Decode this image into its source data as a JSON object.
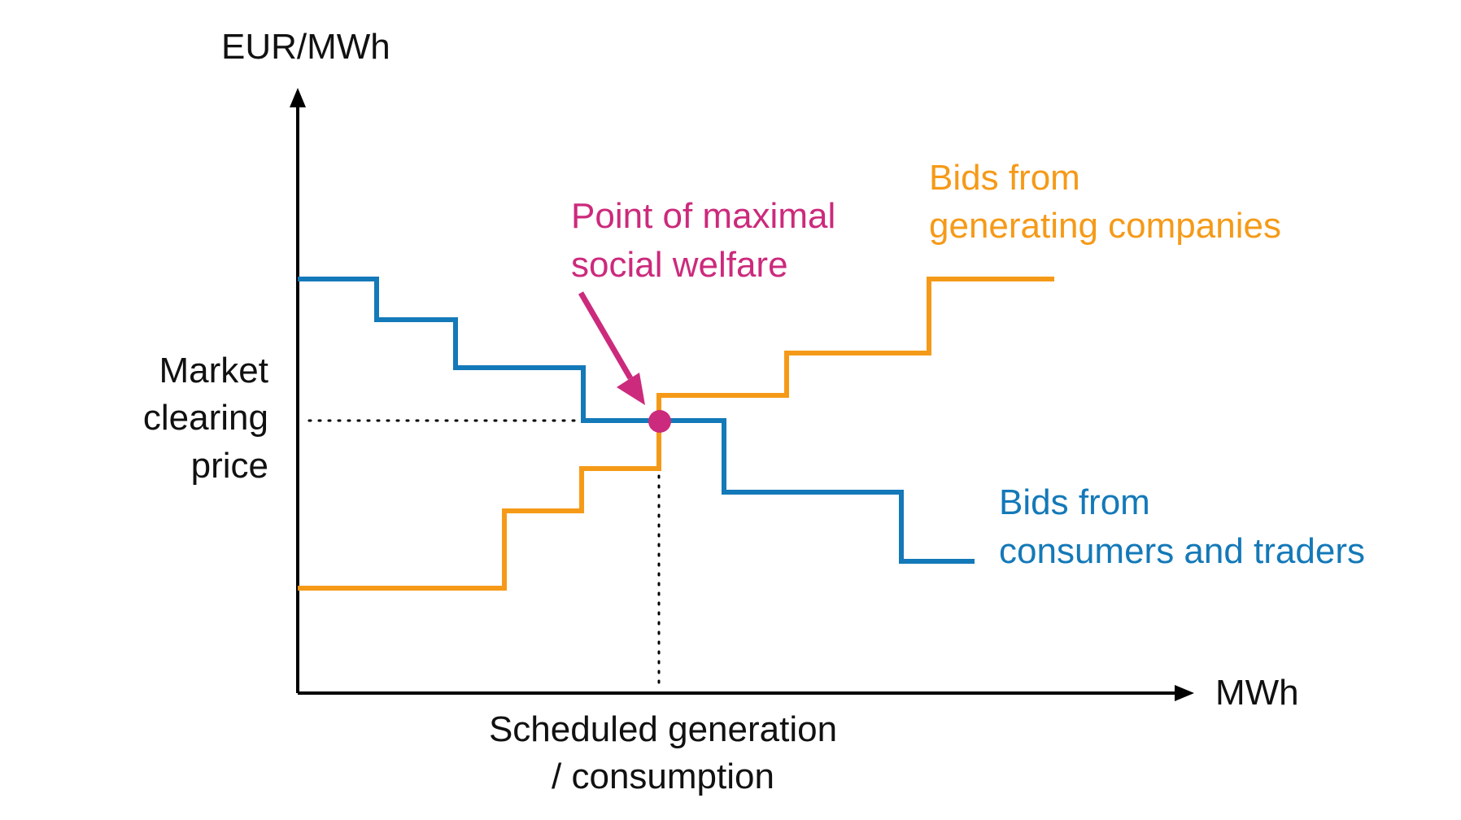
{
  "chart_data": {
    "type": "line",
    "y_axis_unit": "EUR/MWh",
    "x_axis_unit": "MWh",
    "clearing_price_label": [
      "Market",
      "clearing",
      "price"
    ],
    "scheduled_quantity_label": [
      "Scheduled generation",
      "/ consumption"
    ],
    "equilibrium_label": [
      "Point of maximal",
      "social welfare"
    ],
    "supply_label": [
      "Bids from",
      "generating companies"
    ],
    "demand_label": [
      "Bids from",
      "consumers and traders"
    ],
    "colors": {
      "axes": "#000000",
      "supply": "#f59a18",
      "demand": "#1479b8",
      "equilibrium": "#cc2a7c",
      "text": "#111111"
    }
  }
}
